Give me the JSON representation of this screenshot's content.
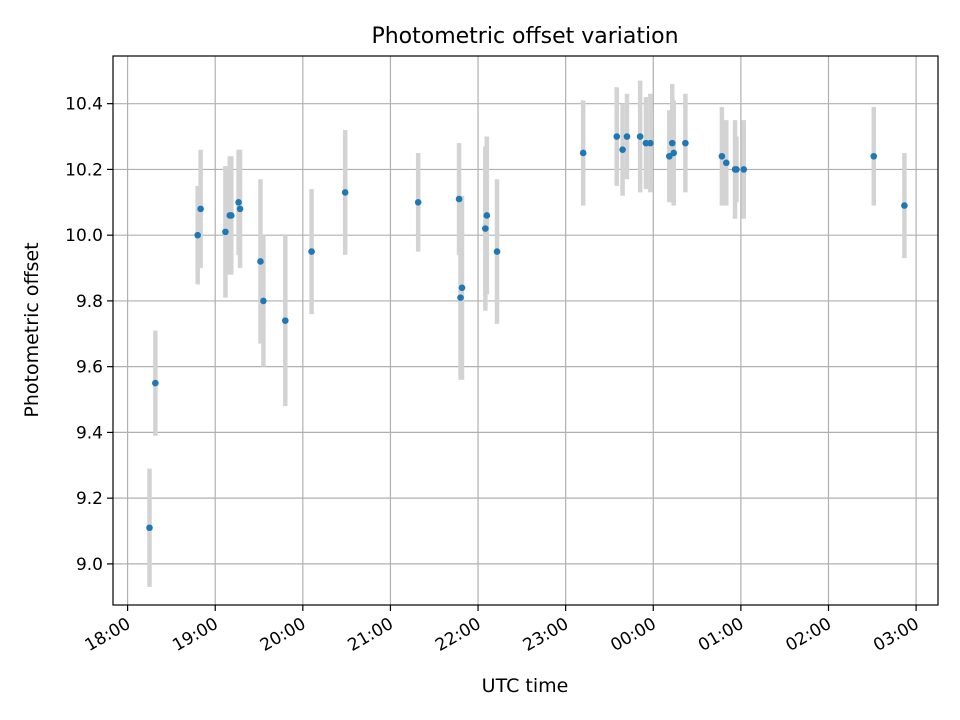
{
  "chart_data": {
    "type": "scatter",
    "title": "Photometric offset variation",
    "xlabel": "UTC time",
    "ylabel": "Photometric offset",
    "x_unit": "UTC time (HH:MM), points span 18:15 to 02:52 next day",
    "xlim": [
      "17:50",
      "03:15"
    ],
    "ylim": [
      8.875,
      10.545
    ],
    "x_ticks": [
      "18:00",
      "19:00",
      "20:00",
      "21:00",
      "22:00",
      "23:00",
      "00:00",
      "01:00",
      "02:00",
      "03:00"
    ],
    "y_ticks": [
      9.0,
      9.2,
      9.4,
      9.6,
      9.8,
      10.0,
      10.2,
      10.4
    ],
    "y_tick_labels": [
      "9.0",
      "9.2",
      "9.4",
      "9.6",
      "9.8",
      "10.0",
      "10.2",
      "10.4"
    ],
    "grid": true,
    "point_color": "#1f77b4",
    "errorbar_color": "#d3d3d3",
    "series": [
      {
        "points": [
          {
            "x": "18:15",
            "y": 9.11,
            "err": 0.18
          },
          {
            "x": "18:19",
            "y": 9.55,
            "err": 0.16
          },
          {
            "x": "18:48",
            "y": 10.0,
            "err": 0.15
          },
          {
            "x": "18:50",
            "y": 10.08,
            "err": 0.18
          },
          {
            "x": "19:07",
            "y": 10.01,
            "err": 0.2
          },
          {
            "x": "19:10",
            "y": 10.06,
            "err": 0.18
          },
          {
            "x": "19:11",
            "y": 10.06,
            "err": 0.18
          },
          {
            "x": "19:16",
            "y": 10.1,
            "err": 0.16
          },
          {
            "x": "19:17",
            "y": 10.08,
            "err": 0.18
          },
          {
            "x": "19:31",
            "y": 9.92,
            "err": 0.25
          },
          {
            "x": "19:33",
            "y": 9.8,
            "err": 0.2
          },
          {
            "x": "19:48",
            "y": 9.74,
            "err": 0.26
          },
          {
            "x": "20:06",
            "y": 9.95,
            "err": 0.19
          },
          {
            "x": "20:29",
            "y": 10.13,
            "err": 0.19
          },
          {
            "x": "21:19",
            "y": 10.1,
            "err": 0.15
          },
          {
            "x": "21:47",
            "y": 10.11,
            "err": 0.17
          },
          {
            "x": "21:48",
            "y": 9.81,
            "err": 0.25
          },
          {
            "x": "21:49",
            "y": 9.84,
            "err": 0.28
          },
          {
            "x": "22:05",
            "y": 10.02,
            "err": 0.25
          },
          {
            "x": "22:06",
            "y": 10.06,
            "err": 0.24
          },
          {
            "x": "22:13",
            "y": 9.95,
            "err": 0.22
          },
          {
            "x": "23:12",
            "y": 10.25,
            "err": 0.16
          },
          {
            "x": "23:35",
            "y": 10.3,
            "err": 0.15
          },
          {
            "x": "23:39",
            "y": 10.26,
            "err": 0.14
          },
          {
            "x": "23:42",
            "y": 10.3,
            "err": 0.13
          },
          {
            "x": "23:51",
            "y": 10.3,
            "err": 0.17
          },
          {
            "x": "23:55",
            "y": 10.28,
            "err": 0.14
          },
          {
            "x": "23:58",
            "y": 10.28,
            "err": 0.15
          },
          {
            "x": "00:11",
            "y": 10.24,
            "err": 0.14
          },
          {
            "x": "00:13",
            "y": 10.28,
            "err": 0.18
          },
          {
            "x": "00:14",
            "y": 10.25,
            "err": 0.16
          },
          {
            "x": "00:22",
            "y": 10.28,
            "err": 0.15
          },
          {
            "x": "00:47",
            "y": 10.24,
            "err": 0.15
          },
          {
            "x": "00:50",
            "y": 10.22,
            "err": 0.13
          },
          {
            "x": "00:56",
            "y": 10.2,
            "err": 0.15
          },
          {
            "x": "00:57",
            "y": 10.2,
            "err": 0.1
          },
          {
            "x": "01:02",
            "y": 10.2,
            "err": 0.15
          },
          {
            "x": "02:31",
            "y": 10.24,
            "err": 0.15
          },
          {
            "x": "02:52",
            "y": 10.09,
            "err": 0.16
          }
        ]
      }
    ]
  }
}
